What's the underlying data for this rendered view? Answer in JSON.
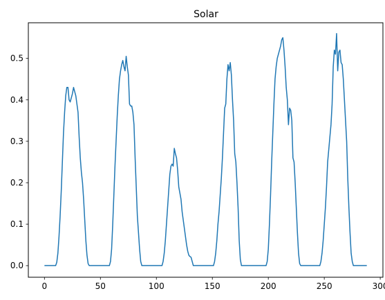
{
  "chart_data": {
    "type": "line",
    "title": "Solar",
    "xlabel": "",
    "ylabel": "",
    "xlim": [
      -14.4,
      302.4
    ],
    "ylim": [
      -0.028,
      0.586
    ],
    "x_ticks": [
      0,
      50,
      100,
      150,
      200,
      250,
      300
    ],
    "y_ticks": [
      0.0,
      0.1,
      0.2,
      0.3,
      0.4,
      0.5
    ],
    "grid": false,
    "line_color": "#1f77b4",
    "series": [
      {
        "points": [
          [
            0,
            0
          ],
          [
            10,
            0
          ],
          [
            11,
            0.008
          ],
          [
            12,
            0.03
          ],
          [
            13,
            0.07
          ],
          [
            14,
            0.12
          ],
          [
            15,
            0.18
          ],
          [
            16,
            0.25
          ],
          [
            17,
            0.32
          ],
          [
            18,
            0.37
          ],
          [
            19,
            0.41
          ],
          [
            20,
            0.43
          ],
          [
            21,
            0.43
          ],
          [
            22,
            0.4
          ],
          [
            23,
            0.395
          ],
          [
            24,
            0.405
          ],
          [
            25,
            0.415
          ],
          [
            26,
            0.43
          ],
          [
            27,
            0.42
          ],
          [
            28,
            0.41
          ],
          [
            29,
            0.39
          ],
          [
            30,
            0.37
          ],
          [
            31,
            0.31
          ],
          [
            32,
            0.26
          ],
          [
            33,
            0.225
          ],
          [
            34,
            0.2
          ],
          [
            35,
            0.16
          ],
          [
            36,
            0.11
          ],
          [
            37,
            0.06
          ],
          [
            38,
            0.025
          ],
          [
            39,
            0.005
          ],
          [
            40,
            0
          ],
          [
            58,
            0
          ],
          [
            59,
            0.01
          ],
          [
            60,
            0.04
          ],
          [
            61,
            0.1
          ],
          [
            62,
            0.17
          ],
          [
            63,
            0.24
          ],
          [
            64,
            0.3
          ],
          [
            65,
            0.36
          ],
          [
            66,
            0.41
          ],
          [
            67,
            0.45
          ],
          [
            68,
            0.47
          ],
          [
            69,
            0.485
          ],
          [
            70,
            0.495
          ],
          [
            71,
            0.48
          ],
          [
            72,
            0.47
          ],
          [
            73,
            0.505
          ],
          [
            74,
            0.48
          ],
          [
            75,
            0.46
          ],
          [
            76,
            0.39
          ],
          [
            77,
            0.385
          ],
          [
            78,
            0.385
          ],
          [
            79,
            0.37
          ],
          [
            80,
            0.34
          ],
          [
            81,
            0.26
          ],
          [
            82,
            0.19
          ],
          [
            83,
            0.12
          ],
          [
            84,
            0.08
          ],
          [
            85,
            0.04
          ],
          [
            86,
            0.01
          ],
          [
            87,
            0
          ],
          [
            104,
            0
          ],
          [
            105,
            0
          ],
          [
            106,
            0.01
          ],
          [
            107,
            0.03
          ],
          [
            108,
            0.06
          ],
          [
            109,
            0.1
          ],
          [
            110,
            0.14
          ],
          [
            111,
            0.18
          ],
          [
            112,
            0.22
          ],
          [
            113,
            0.24
          ],
          [
            114,
            0.245
          ],
          [
            115,
            0.24
          ],
          [
            116,
            0.283
          ],
          [
            117,
            0.27
          ],
          [
            118,
            0.26
          ],
          [
            119,
            0.23
          ],
          [
            120,
            0.19
          ],
          [
            121,
            0.175
          ],
          [
            122,
            0.16
          ],
          [
            123,
            0.13
          ],
          [
            124,
            0.11
          ],
          [
            125,
            0.09
          ],
          [
            126,
            0.07
          ],
          [
            127,
            0.05
          ],
          [
            128,
            0.035
          ],
          [
            129,
            0.025
          ],
          [
            130,
            0.022
          ],
          [
            131,
            0.02
          ],
          [
            132,
            0.01
          ],
          [
            133,
            0
          ],
          [
            150,
            0
          ],
          [
            151,
            0
          ],
          [
            152,
            0.01
          ],
          [
            153,
            0.03
          ],
          [
            154,
            0.06
          ],
          [
            155,
            0.1
          ],
          [
            156,
            0.13
          ],
          [
            157,
            0.17
          ],
          [
            158,
            0.21
          ],
          [
            159,
            0.26
          ],
          [
            160,
            0.32
          ],
          [
            161,
            0.38
          ],
          [
            162,
            0.39
          ],
          [
            163,
            0.45
          ],
          [
            164,
            0.485
          ],
          [
            165,
            0.47
          ],
          [
            166,
            0.49
          ],
          [
            167,
            0.46
          ],
          [
            168,
            0.4
          ],
          [
            169,
            0.35
          ],
          [
            170,
            0.27
          ],
          [
            171,
            0.25
          ],
          [
            172,
            0.2
          ],
          [
            173,
            0.14
          ],
          [
            174,
            0.06
          ],
          [
            175,
            0.015
          ],
          [
            176,
            0
          ],
          [
            197,
            0
          ],
          [
            198,
            0
          ],
          [
            199,
            0.01
          ],
          [
            200,
            0.04
          ],
          [
            201,
            0.1
          ],
          [
            202,
            0.17
          ],
          [
            203,
            0.25
          ],
          [
            204,
            0.32
          ],
          [
            205,
            0.39
          ],
          [
            206,
            0.45
          ],
          [
            207,
            0.48
          ],
          [
            208,
            0.5
          ],
          [
            209,
            0.51
          ],
          [
            210,
            0.52
          ],
          [
            211,
            0.53
          ],
          [
            212,
            0.545
          ],
          [
            213,
            0.55
          ],
          [
            214,
            0.52
          ],
          [
            215,
            0.48
          ],
          [
            216,
            0.43
          ],
          [
            217,
            0.4
          ],
          [
            218,
            0.34
          ],
          [
            219,
            0.38
          ],
          [
            220,
            0.375
          ],
          [
            221,
            0.35
          ],
          [
            222,
            0.26
          ],
          [
            223,
            0.25
          ],
          [
            224,
            0.2
          ],
          [
            225,
            0.14
          ],
          [
            226,
            0.08
          ],
          [
            227,
            0.03
          ],
          [
            228,
            0.005
          ],
          [
            229,
            0
          ],
          [
            245,
            0
          ],
          [
            246,
            0
          ],
          [
            247,
            0.01
          ],
          [
            248,
            0.03
          ],
          [
            249,
            0.06
          ],
          [
            250,
            0.1
          ],
          [
            251,
            0.14
          ],
          [
            252,
            0.19
          ],
          [
            253,
            0.25
          ],
          [
            254,
            0.28
          ],
          [
            255,
            0.31
          ],
          [
            256,
            0.34
          ],
          [
            257,
            0.39
          ],
          [
            258,
            0.48
          ],
          [
            259,
            0.52
          ],
          [
            260,
            0.51
          ],
          [
            261,
            0.56
          ],
          [
            262,
            0.47
          ],
          [
            263,
            0.515
          ],
          [
            264,
            0.52
          ],
          [
            265,
            0.49
          ],
          [
            266,
            0.485
          ],
          [
            267,
            0.45
          ],
          [
            268,
            0.4
          ],
          [
            269,
            0.35
          ],
          [
            270,
            0.3
          ],
          [
            271,
            0.21
          ],
          [
            272,
            0.14
          ],
          [
            273,
            0.08
          ],
          [
            274,
            0.03
          ],
          [
            275,
            0.01
          ],
          [
            276,
            0
          ],
          [
            288,
            0
          ]
        ]
      }
    ]
  }
}
